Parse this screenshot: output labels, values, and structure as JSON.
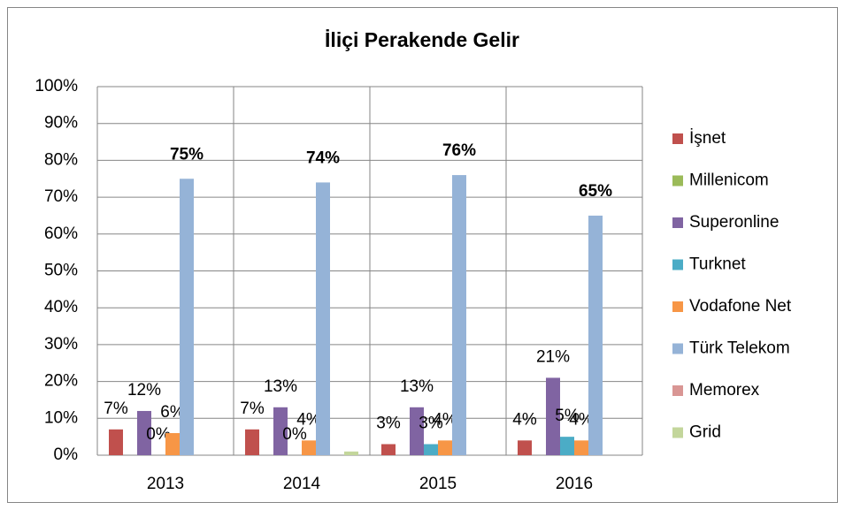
{
  "chart_data": {
    "type": "bar",
    "title": "İliçi Perakende Gelir",
    "categories": [
      "2013",
      "2014",
      "2015",
      "2016"
    ],
    "series": [
      {
        "name": "İşnet",
        "color": "#c0504d",
        "values": [
          7,
          7,
          3,
          4
        ],
        "value_labels": [
          "7%",
          "7%",
          "3%",
          "4%"
        ]
      },
      {
        "name": "Millenicom",
        "color": "#9bbb59",
        "values": [
          null,
          null,
          null,
          null
        ]
      },
      {
        "name": "Superonline",
        "color": "#8064a2",
        "values": [
          12,
          13,
          13,
          21
        ],
        "value_labels": [
          "12%",
          "13%",
          "13%",
          "21%"
        ]
      },
      {
        "name": "Turknet",
        "color": "#4bacc6",
        "values": [
          0,
          0,
          3,
          5
        ],
        "value_labels": [
          "0%",
          "0%",
          "3%",
          "5%"
        ]
      },
      {
        "name": "Vodafone Net",
        "color": "#f79646",
        "values": [
          6,
          4,
          4,
          4
        ],
        "value_labels": [
          "6%",
          "4%",
          "4%",
          "4%"
        ]
      },
      {
        "name": "Türk Telekom",
        "color": "#95b3d7",
        "values": [
          75,
          74,
          76,
          65
        ],
        "value_labels": [
          "75%",
          "74%",
          "76%",
          "65%"
        ],
        "label_weight": "bold"
      },
      {
        "name": "Memorex",
        "color": "#d99694",
        "values": [
          null,
          null,
          null,
          null
        ]
      },
      {
        "name": "Grid",
        "color": "#c3d69b",
        "values": [
          null,
          1,
          null,
          null
        ]
      }
    ],
    "ylim": [
      0,
      100
    ],
    "yticks": [
      {
        "value": 0,
        "label": "0%"
      },
      {
        "value": 10,
        "label": "10%"
      },
      {
        "value": 20,
        "label": "20%"
      },
      {
        "value": 30,
        "label": "30%"
      },
      {
        "value": 40,
        "label": "40%"
      },
      {
        "value": 50,
        "label": "50%"
      },
      {
        "value": 60,
        "label": "60%"
      },
      {
        "value": 70,
        "label": "70%"
      },
      {
        "value": 80,
        "label": "80%"
      },
      {
        "value": 90,
        "label": "90%"
      },
      {
        "value": 100,
        "label": "100%"
      }
    ],
    "grid": true,
    "legend": "right"
  }
}
